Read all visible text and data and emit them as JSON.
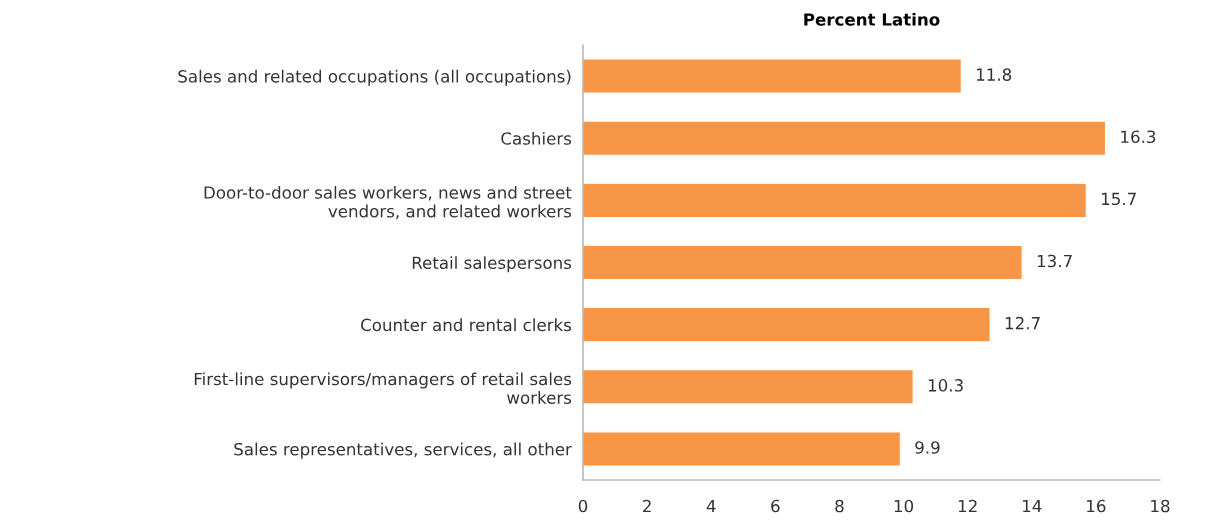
{
  "chart_data": {
    "type": "bar",
    "orientation": "horizontal",
    "title": "Percent Latino",
    "categories": [
      "Sales and related occupations (all occupations)",
      "Cashiers",
      "Door-to-door sales workers, news and street\nvendors, and related workers",
      "Retail salespersons",
      "Counter and rental clerks",
      "First-line supervisors/managers of retail sales\nworkers",
      "Sales representatives, services, all other"
    ],
    "values": [
      11.8,
      16.3,
      15.7,
      13.7,
      12.7,
      10.3,
      9.9
    ],
    "color": "#f79646",
    "xlim": [
      0,
      18
    ],
    "xticks": [
      0,
      2,
      4,
      6,
      8,
      10,
      12,
      14,
      16,
      18
    ],
    "data_labels": true,
    "grid": false,
    "legend": false
  }
}
